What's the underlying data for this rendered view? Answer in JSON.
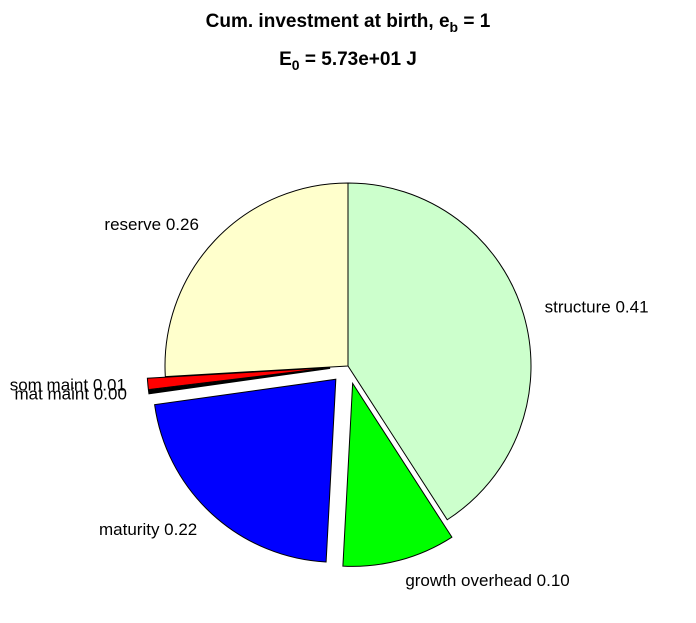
{
  "chart_data": {
    "type": "pie",
    "title_lines": [
      [
        "Cum. investment at birth, e",
        "b",
        " = 1"
      ],
      [
        "E",
        "0",
        " = 5.73e+01 J"
      ]
    ],
    "labels": [
      "structure 0.41",
      "growth overhead 0.10",
      "maturity 0.22",
      "mat maint 0.00",
      "som maint 0.01",
      "reserve 0.26"
    ],
    "values": [
      0.41,
      0.1,
      0.22,
      0.003,
      0.01,
      0.26
    ],
    "colors": [
      "#ccffcc",
      "#00ff00",
      "#0000ff",
      "#000000",
      "#ff0000",
      "#ffffcc"
    ],
    "explode": [
      false,
      true,
      true,
      true,
      true,
      false
    ]
  }
}
